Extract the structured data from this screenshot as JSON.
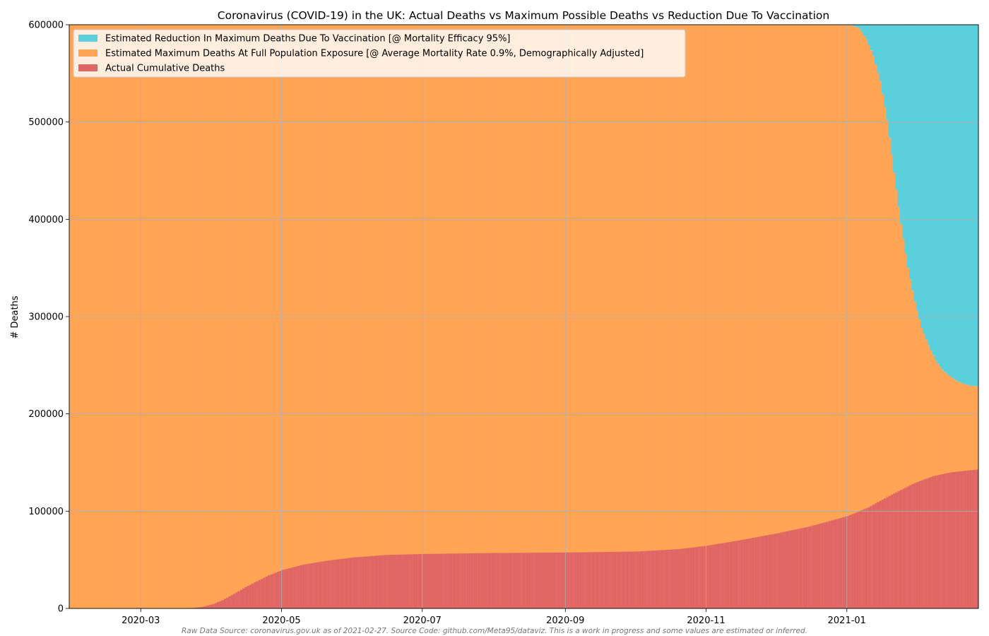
{
  "chart_data": {
    "type": "area",
    "title": "Coronavirus (COVID-19) in the UK: Actual Deaths vs Maximum Possible Deaths vs Reduction Due To Vaccination",
    "xlabel": "",
    "ylabel": "# Deaths",
    "ylim": [
      0,
      600000
    ],
    "xlim": [
      "2020-01-30",
      "2021-02-27"
    ],
    "grid": true,
    "legend_placement": "top-left",
    "y_ticks": [
      "0",
      "100000",
      "200000",
      "300000",
      "400000",
      "500000",
      "600000"
    ],
    "x_ticks": [
      "2020-03",
      "2020-05",
      "2020-07",
      "2020-09",
      "2020-11",
      "2021-01"
    ],
    "colors": {
      "actual": "#e06666",
      "maximum": "#ffa555",
      "reduction": "#5bcfdc"
    },
    "series": [
      {
        "name": "Estimated Reduction In Maximum Deaths Due To Vaccination [@ Mortality Efficacy 95%]",
        "x": [
          "2021-01-01",
          "2021-01-03",
          "2021-01-06",
          "2021-01-09",
          "2021-01-12",
          "2021-01-15",
          "2021-01-18",
          "2021-01-21",
          "2021-01-24",
          "2021-01-27",
          "2021-01-30",
          "2021-02-02",
          "2021-02-05",
          "2021-02-08",
          "2021-02-11",
          "2021-02-14",
          "2021-02-17",
          "2021-02-20",
          "2021-02-23",
          "2021-02-27"
        ],
        "values": [
          0,
          1000,
          4000,
          15000,
          32000,
          58000,
          98000,
          152000,
          205000,
          250000,
          285000,
          312000,
          330000,
          345000,
          355000,
          361000,
          366000,
          369000,
          371000,
          372000
        ]
      },
      {
        "name": "Estimated Maximum Deaths At Full Population Exposure [@ Average Mortality Rate 0.9%, Demographically Adjusted]",
        "x": [
          "2020-01-30",
          "2021-01-01",
          "2021-01-03",
          "2021-01-06",
          "2021-01-09",
          "2021-01-12",
          "2021-01-15",
          "2021-01-18",
          "2021-01-21",
          "2021-01-24",
          "2021-01-27",
          "2021-01-30",
          "2021-02-02",
          "2021-02-05",
          "2021-02-08",
          "2021-02-11",
          "2021-02-14",
          "2021-02-17",
          "2021-02-20",
          "2021-02-23",
          "2021-02-27"
        ],
        "values": [
          600000,
          600000,
          599000,
          596000,
          585000,
          568000,
          542000,
          502000,
          448000,
          395000,
          350000,
          315000,
          288000,
          270000,
          255000,
          245000,
          239000,
          234000,
          231000,
          229000,
          228000
        ]
      },
      {
        "name": "Actual Cumulative Deaths",
        "x": [
          "2020-01-30",
          "2020-03-20",
          "2020-03-27",
          "2020-04-01",
          "2020-04-05",
          "2020-04-10",
          "2020-04-15",
          "2020-04-20",
          "2020-04-25",
          "2020-05-01",
          "2020-05-10",
          "2020-05-20",
          "2020-06-01",
          "2020-06-15",
          "2020-07-01",
          "2020-08-01",
          "2020-09-01",
          "2020-10-01",
          "2020-10-20",
          "2020-11-01",
          "2020-11-15",
          "2020-12-01",
          "2020-12-15",
          "2021-01-01",
          "2021-01-10",
          "2021-01-20",
          "2021-01-30",
          "2021-02-07",
          "2021-02-15",
          "2021-02-27"
        ],
        "values": [
          0,
          0,
          1500,
          4500,
          8500,
          15000,
          22000,
          28000,
          34000,
          39500,
          45000,
          49000,
          52500,
          55000,
          56000,
          57000,
          57500,
          58500,
          61000,
          64500,
          70000,
          77000,
          84000,
          95000,
          104000,
          117000,
          129000,
          136000,
          140000,
          143000
        ]
      }
    ],
    "footer": "Raw Data Source: coronavirus.gov.uk as of 2021-02-27. Source Code: github.com/Meta95/dataviz. This is a work in progress and some values are estimated or inferred."
  }
}
